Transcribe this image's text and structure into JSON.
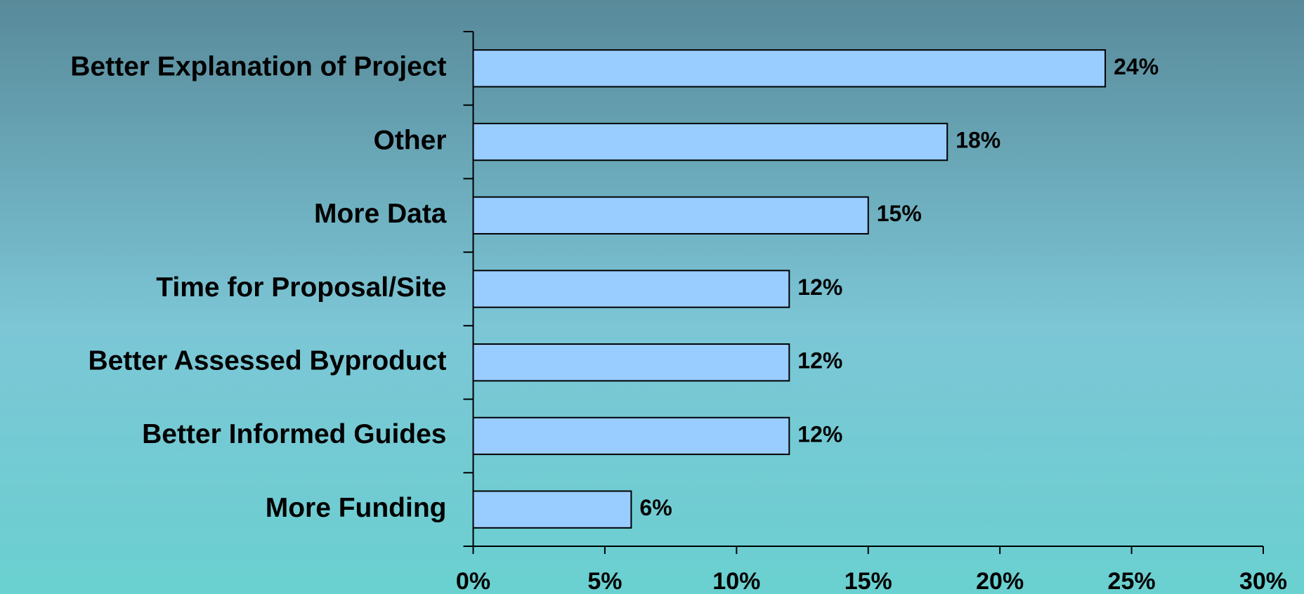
{
  "chart_data": {
    "type": "hbar",
    "categories": [
      "Better Explanation of Project",
      "Other",
      "More Data",
      "Time for Proposal/Site",
      "Better Assessed Byproduct",
      "Better Informed Guides",
      "More Funding"
    ],
    "values": [
      24,
      18,
      15,
      12,
      12,
      12,
      6
    ],
    "value_labels": [
      "24%",
      "18%",
      "15%",
      "12%",
      "12%",
      "12%",
      "6%"
    ],
    "color": "#99ccff",
    "xlim": [
      0,
      30
    ],
    "xticks": [
      {
        "value": 0,
        "label": "0%"
      },
      {
        "value": 5,
        "label": "5%"
      },
      {
        "value": 10,
        "label": "10%"
      },
      {
        "value": 15,
        "label": "15%"
      },
      {
        "value": 20,
        "label": "20%"
      },
      {
        "value": 25,
        "label": "25%"
      },
      {
        "value": 30,
        "label": "30%"
      }
    ],
    "grid": false
  }
}
